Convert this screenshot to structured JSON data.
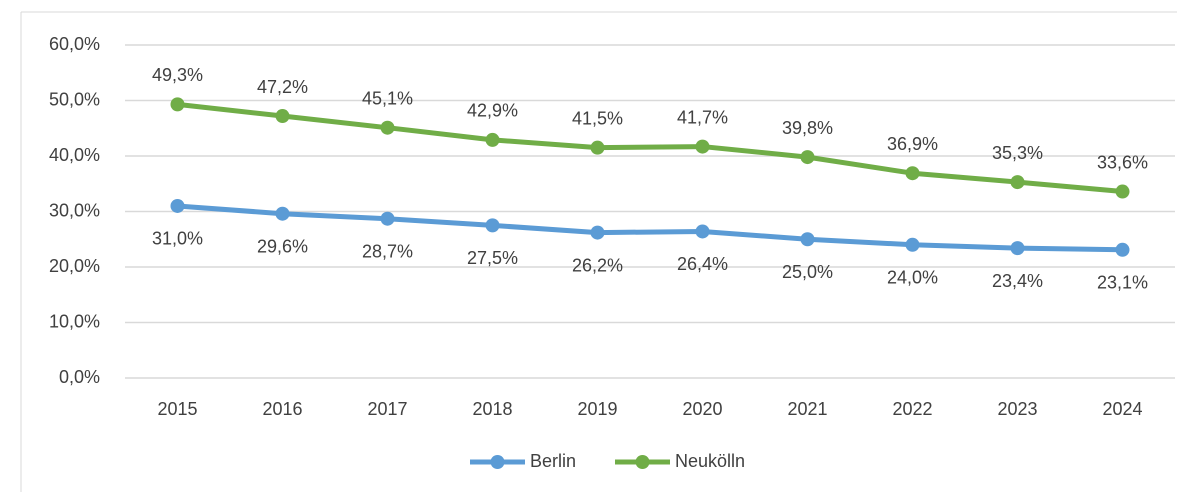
{
  "chart_data": {
    "type": "line",
    "categories": [
      "2015",
      "2016",
      "2017",
      "2018",
      "2019",
      "2020",
      "2021",
      "2022",
      "2023",
      "2024"
    ],
    "series": [
      {
        "name": "Berlin",
        "color": "#5b9bd5",
        "values": [
          31.0,
          29.6,
          28.7,
          27.5,
          26.2,
          26.4,
          25.0,
          24.0,
          23.4,
          23.1
        ],
        "value_labels": [
          "31,0%",
          "29,6%",
          "28,7%",
          "27,5%",
          "26,2%",
          "26,4%",
          "25,0%",
          "24,0%",
          "23,4%",
          "23,1%"
        ]
      },
      {
        "name": "Neukölln",
        "color": "#70ad47",
        "values": [
          49.3,
          47.2,
          45.1,
          42.9,
          41.5,
          41.7,
          39.8,
          36.9,
          35.3,
          33.6
        ],
        "value_labels": [
          "49,3%",
          "47,2%",
          "45,1%",
          "42,9%",
          "41,5%",
          "41,7%",
          "39,8%",
          "36,9%",
          "35,3%",
          "33,6%"
        ]
      }
    ],
    "ylim": [
      0,
      60
    ],
    "yticks": [
      {
        "value": 0,
        "label": "0,0%"
      },
      {
        "value": 10,
        "label": "10,0%"
      },
      {
        "value": 20,
        "label": "20,0%"
      },
      {
        "value": 30,
        "label": "30,0%"
      },
      {
        "value": 40,
        "label": "40,0%"
      },
      {
        "value": 50,
        "label": "50,0%"
      },
      {
        "value": 60,
        "label": "60,0%"
      }
    ],
    "grid": true,
    "legend": "bottom"
  }
}
